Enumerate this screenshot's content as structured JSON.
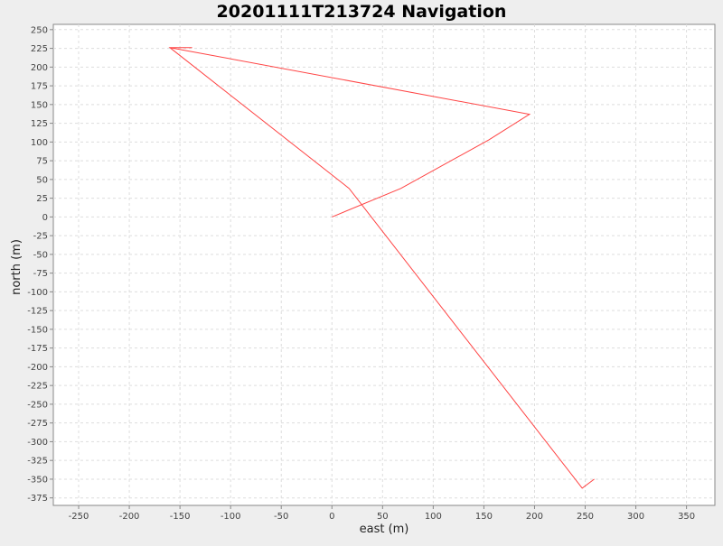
{
  "chart_data": {
    "type": "line",
    "title": "20201111T213724 Navigation",
    "xlabel": "east (m)",
    "ylabel": "north (m)",
    "xlim": [
      -275,
      378
    ],
    "ylim": [
      -385,
      257
    ],
    "x_ticks": [
      -250,
      -200,
      -150,
      -100,
      -50,
      0,
      50,
      100,
      150,
      200,
      250,
      300,
      350
    ],
    "y_ticks": [
      250,
      225,
      200,
      175,
      150,
      125,
      100,
      75,
      50,
      25,
      0,
      -25,
      -50,
      -75,
      -100,
      -125,
      -150,
      -175,
      -200,
      -225,
      -250,
      -275,
      -300,
      -325,
      -350,
      -375
    ],
    "grid": true,
    "legend": "none",
    "series": [
      {
        "color": "#ff4444",
        "points": [
          [
            0,
            0
          ],
          [
            68,
            38
          ],
          [
            155,
            103
          ],
          [
            195,
            137
          ],
          [
            -160,
            226
          ],
          [
            -138,
            226
          ],
          [
            -160,
            226
          ],
          [
            17,
            38
          ],
          [
            247,
            -362
          ],
          [
            259,
            -350
          ]
        ]
      }
    ]
  }
}
